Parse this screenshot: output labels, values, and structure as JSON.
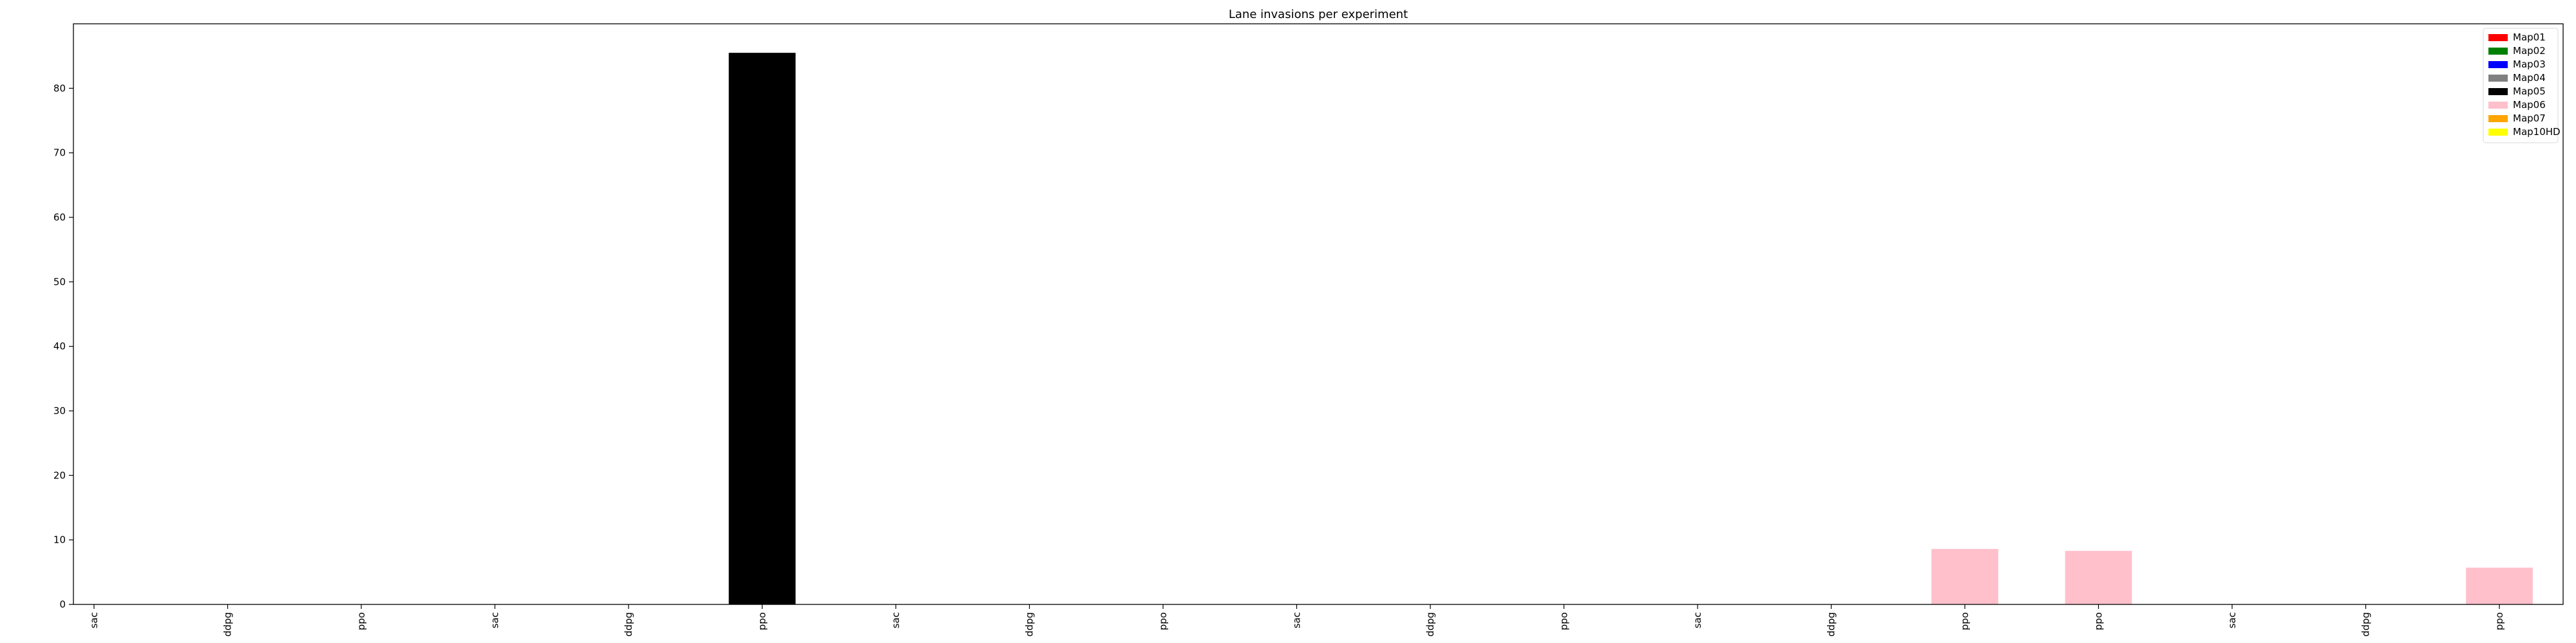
{
  "chart_data": {
    "type": "bar",
    "title": "Lane invasions per experiment",
    "xlabel": "",
    "ylabel": "",
    "ylim": [
      0,
      90
    ],
    "yticks": [
      0,
      10,
      20,
      30,
      40,
      50,
      60,
      70,
      80
    ],
    "grid": false,
    "legend_position": "top-right",
    "categories": [
      "sac",
      "ddpg",
      "ppo",
      "sac",
      "ddpg",
      "ppo",
      "sac",
      "ddpg",
      "ppo",
      "sac",
      "ddpg",
      "ppo",
      "sac",
      "ddpg",
      "ppo",
      "ppo",
      "sac",
      "ddpg",
      "ppo"
    ],
    "series": [
      {
        "name": "Map01",
        "color": "#ff0000"
      },
      {
        "name": "Map02",
        "color": "#008000"
      },
      {
        "name": "Map03",
        "color": "#0000ff"
      },
      {
        "name": "Map04",
        "color": "#808080"
      },
      {
        "name": "Map05",
        "color": "#000000"
      },
      {
        "name": "Map06",
        "color": "#ffc0cb"
      },
      {
        "name": "Map07",
        "color": "#ffa500"
      },
      {
        "name": "Map10HD",
        "color": "#ffff00"
      }
    ],
    "bars": [
      {
        "category_index": 0,
        "series": "Map01",
        "value": 0
      },
      {
        "category_index": 1,
        "series": "Map01",
        "value": 0
      },
      {
        "category_index": 2,
        "series": "Map01",
        "value": 0
      },
      {
        "category_index": 3,
        "series": "Map05",
        "value": 0
      },
      {
        "category_index": 4,
        "series": "Map05",
        "value": 0
      },
      {
        "category_index": 5,
        "series": "Map05",
        "value": 85.5
      },
      {
        "category_index": 6,
        "series": "Map03",
        "value": 0
      },
      {
        "category_index": 7,
        "series": "Map03",
        "value": 0
      },
      {
        "category_index": 8,
        "series": "Map03",
        "value": 0
      },
      {
        "category_index": 9,
        "series": "Map04",
        "value": 0
      },
      {
        "category_index": 10,
        "series": "Map04",
        "value": 0
      },
      {
        "category_index": 11,
        "series": "Map04",
        "value": 0
      },
      {
        "category_index": 12,
        "series": "Map06",
        "value": 0
      },
      {
        "category_index": 13,
        "series": "Map06",
        "value": 0
      },
      {
        "category_index": 14,
        "series": "Map06",
        "value": 8.6
      },
      {
        "category_index": 15,
        "series": "Map06",
        "value": 8.3
      },
      {
        "category_index": 16,
        "series": "Map06",
        "value": 0
      },
      {
        "category_index": 17,
        "series": "Map06",
        "value": 0
      },
      {
        "category_index": 18,
        "series": "Map06",
        "value": 5.7
      }
    ]
  }
}
